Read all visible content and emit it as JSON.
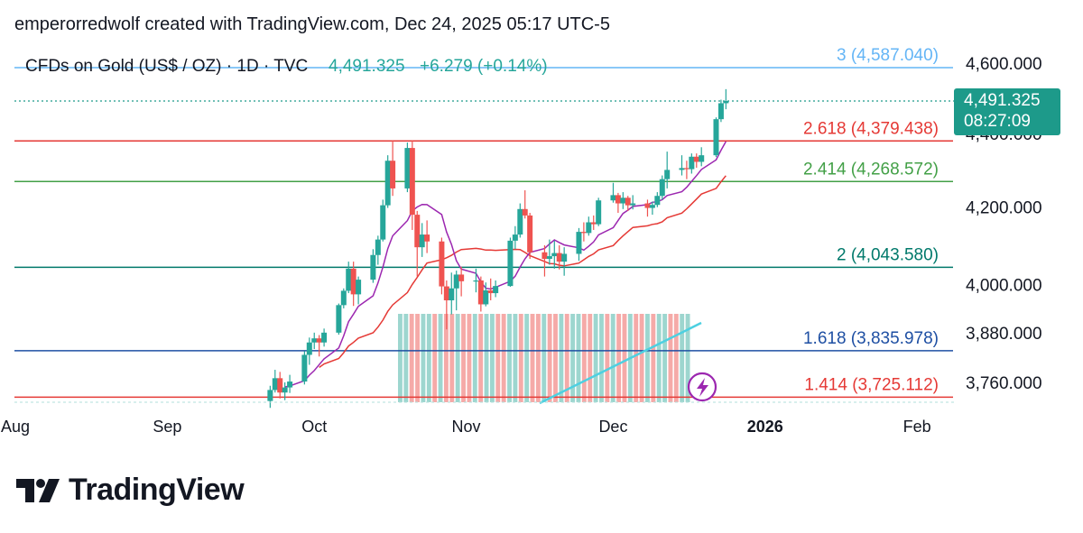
{
  "header": {
    "attribution": "emperorredwolf created with TradingView.com, Dec 24, 2025 05:17 UTC-5"
  },
  "symbol_line": {
    "name": "CFDs on Gold (US$ / OZ) · 1D · TVC",
    "price": "4,491.325",
    "change": "+6.279 (+0.14%)"
  },
  "price_badge": {
    "price": "4,491.325",
    "countdown": "08:27:09"
  },
  "logo": {
    "text": "TradingView"
  },
  "colors": {
    "up": "#26a69a",
    "down": "#ef5350",
    "ma_fast": "#9c27b0",
    "ma_slow": "#e53935",
    "badge": "#1d9a8a",
    "trendline": "#4dd0e1",
    "lightning_icon": "#9c27b0"
  },
  "chart_data": {
    "type": "candlestick",
    "title": "CFDs on Gold (US$ / OZ) · 1D · TVC",
    "x_range": [
      "2025-08-01",
      "2026-02-10"
    ],
    "x_ticks": [
      {
        "date": "2025-08-01",
        "label": "Aug",
        "bold": false
      },
      {
        "date": "2025-09-01",
        "label": "Sep",
        "bold": false
      },
      {
        "date": "2025-10-01",
        "label": "Oct",
        "bold": false
      },
      {
        "date": "2025-11-01",
        "label": "Nov",
        "bold": false
      },
      {
        "date": "2025-12-01",
        "label": "Dec",
        "bold": false
      },
      {
        "date": "2026-01-01",
        "label": "2026",
        "bold": true
      },
      {
        "date": "2026-02-01",
        "label": "Feb",
        "bold": false
      }
    ],
    "y_ticks": [
      {
        "value": 4600,
        "label": "4,600.000"
      },
      {
        "value": 4400,
        "label": "4,400.000"
      },
      {
        "value": 4200,
        "label": "4,200.000"
      },
      {
        "value": 4000,
        "label": "4,000.000"
      },
      {
        "value": 3880,
        "label": "3,880.000"
      },
      {
        "value": 3760,
        "label": "3,760.000"
      }
    ],
    "fib_levels": [
      {
        "level": "3",
        "value": 4587.04,
        "label": "3 (4,587.040)",
        "color": "#64b5f6"
      },
      {
        "level": "2.618",
        "value": 4379.438,
        "label": "2.618 (4,379.438)",
        "color": "#e53935"
      },
      {
        "level": "2.414",
        "value": 4268.572,
        "label": "2.414 (4,268.572)",
        "color": "#43a047"
      },
      {
        "level": "2",
        "value": 4043.58,
        "label": "2 (4,043.580)",
        "color": "#00796b"
      },
      {
        "level": "1.618",
        "value": 3835.978,
        "label": "1.618 (3,835.978)",
        "color": "#1e4fa3"
      },
      {
        "level": "1.414",
        "value": 3725.112,
        "label": "1.414 (3,725.112)",
        "color": "#e53935"
      }
    ],
    "last_price": 4491.325,
    "candles": [
      {
        "d": "2025-09-22",
        "o": 3716,
        "h": 3752,
        "l": 3700,
        "c": 3742
      },
      {
        "d": "2025-09-23",
        "o": 3742,
        "h": 3790,
        "l": 3736,
        "c": 3770
      },
      {
        "d": "2025-09-24",
        "o": 3770,
        "h": 3785,
        "l": 3722,
        "c": 3736
      },
      {
        "d": "2025-09-25",
        "o": 3736,
        "h": 3760,
        "l": 3718,
        "c": 3748
      },
      {
        "d": "2025-09-26",
        "o": 3748,
        "h": 3778,
        "l": 3735,
        "c": 3762
      },
      {
        "d": "2025-09-29",
        "o": 3762,
        "h": 3835,
        "l": 3755,
        "c": 3826
      },
      {
        "d": "2025-09-30",
        "o": 3826,
        "h": 3868,
        "l": 3802,
        "c": 3856
      },
      {
        "d": "2025-10-01",
        "o": 3856,
        "h": 3880,
        "l": 3840,
        "c": 3866
      },
      {
        "d": "2025-10-02",
        "o": 3866,
        "h": 3874,
        "l": 3822,
        "c": 3856
      },
      {
        "d": "2025-10-03",
        "o": 3856,
        "h": 3890,
        "l": 3846,
        "c": 3880
      },
      {
        "d": "2025-10-06",
        "o": 3880,
        "h": 3952,
        "l": 3875,
        "c": 3948
      },
      {
        "d": "2025-10-07",
        "o": 3948,
        "h": 3990,
        "l": 3940,
        "c": 3984
      },
      {
        "d": "2025-10-08",
        "o": 3984,
        "h": 4058,
        "l": 3978,
        "c": 4040
      },
      {
        "d": "2025-10-09",
        "o": 4040,
        "h": 4058,
        "l": 3946,
        "c": 3975
      },
      {
        "d": "2025-10-10",
        "o": 3975,
        "h": 4020,
        "l": 3950,
        "c": 4012
      },
      {
        "d": "2025-10-13",
        "o": 4012,
        "h": 4090,
        "l": 4004,
        "c": 4075
      },
      {
        "d": "2025-10-14",
        "o": 4075,
        "h": 4125,
        "l": 4050,
        "c": 4115
      },
      {
        "d": "2025-10-15",
        "o": 4115,
        "h": 4220,
        "l": 4110,
        "c": 4205
      },
      {
        "d": "2025-10-16",
        "o": 4205,
        "h": 4340,
        "l": 4198,
        "c": 4325
      },
      {
        "d": "2025-10-17",
        "o": 4325,
        "h": 4380,
        "l": 4230,
        "c": 4250
      },
      {
        "d": "2025-10-20",
        "o": 4250,
        "h": 4375,
        "l": 4240,
        "c": 4360
      },
      {
        "d": "2025-10-21",
        "o": 4360,
        "h": 4380,
        "l": 4140,
        "c": 4180
      },
      {
        "d": "2025-10-22",
        "o": 4180,
        "h": 4190,
        "l": 4020,
        "c": 4095
      },
      {
        "d": "2025-10-23",
        "o": 4095,
        "h": 4158,
        "l": 4070,
        "c": 4128
      },
      {
        "d": "2025-10-24",
        "o": 4128,
        "h": 4165,
        "l": 4080,
        "c": 4110
      },
      {
        "d": "2025-10-27",
        "o": 4110,
        "h": 4120,
        "l": 3975,
        "c": 3995
      },
      {
        "d": "2025-10-28",
        "o": 3995,
        "h": 4010,
        "l": 3888,
        "c": 3960
      },
      {
        "d": "2025-10-29",
        "o": 3960,
        "h": 4030,
        "l": 3925,
        "c": 3990
      },
      {
        "d": "2025-10-30",
        "o": 3990,
        "h": 4035,
        "l": 3935,
        "c": 4025
      },
      {
        "d": "2025-10-31",
        "o": 4025,
        "h": 4045,
        "l": 3970,
        "c": 4008
      },
      {
        "d": "2025-11-03",
        "o": 4008,
        "h": 4040,
        "l": 3980,
        "c": 4010
      },
      {
        "d": "2025-11-04",
        "o": 4010,
        "h": 4020,
        "l": 3932,
        "c": 3950
      },
      {
        "d": "2025-11-05",
        "o": 3950,
        "h": 4005,
        "l": 3945,
        "c": 3985
      },
      {
        "d": "2025-11-06",
        "o": 3985,
        "h": 4015,
        "l": 3960,
        "c": 3978
      },
      {
        "d": "2025-11-07",
        "o": 3978,
        "h": 4010,
        "l": 3968,
        "c": 3996
      },
      {
        "d": "2025-11-10",
        "o": 3996,
        "h": 4120,
        "l": 3994,
        "c": 4112
      },
      {
        "d": "2025-11-11",
        "o": 4112,
        "h": 4150,
        "l": 4090,
        "c": 4128
      },
      {
        "d": "2025-11-12",
        "o": 4128,
        "h": 4210,
        "l": 4120,
        "c": 4195
      },
      {
        "d": "2025-11-13",
        "o": 4195,
        "h": 4245,
        "l": 4170,
        "c": 4178
      },
      {
        "d": "2025-11-14",
        "o": 4178,
        "h": 4185,
        "l": 4065,
        "c": 4082
      },
      {
        "d": "2025-11-17",
        "o": 4082,
        "h": 4100,
        "l": 4020,
        "c": 4065
      },
      {
        "d": "2025-11-18",
        "o": 4065,
        "h": 4115,
        "l": 4050,
        "c": 4072
      },
      {
        "d": "2025-11-19",
        "o": 4072,
        "h": 4112,
        "l": 4040,
        "c": 4080
      },
      {
        "d": "2025-11-20",
        "o": 4080,
        "h": 4100,
        "l": 4038,
        "c": 4058
      },
      {
        "d": "2025-11-21",
        "o": 4058,
        "h": 4095,
        "l": 4022,
        "c": 4078
      },
      {
        "d": "2025-11-24",
        "o": 4078,
        "h": 4145,
        "l": 4060,
        "c": 4135
      },
      {
        "d": "2025-11-25",
        "o": 4135,
        "h": 4160,
        "l": 4110,
        "c": 4132
      },
      {
        "d": "2025-11-26",
        "o": 4132,
        "h": 4175,
        "l": 4125,
        "c": 4160
      },
      {
        "d": "2025-11-27",
        "o": 4160,
        "h": 4178,
        "l": 4140,
        "c": 4155
      },
      {
        "d": "2025-11-28",
        "o": 4155,
        "h": 4225,
        "l": 4150,
        "c": 4218
      },
      {
        "d": "2025-12-01",
        "o": 4218,
        "h": 4265,
        "l": 4212,
        "c": 4232
      },
      {
        "d": "2025-12-02",
        "o": 4232,
        "h": 4238,
        "l": 4185,
        "c": 4210
      },
      {
        "d": "2025-12-03",
        "o": 4210,
        "h": 4240,
        "l": 4195,
        "c": 4225
      },
      {
        "d": "2025-12-04",
        "o": 4225,
        "h": 4230,
        "l": 4190,
        "c": 4205
      },
      {
        "d": "2025-12-05",
        "o": 4205,
        "h": 4232,
        "l": 4194,
        "c": 4210
      },
      {
        "d": "2025-12-08",
        "o": 4210,
        "h": 4220,
        "l": 4175,
        "c": 4198
      },
      {
        "d": "2025-12-09",
        "o": 4198,
        "h": 4215,
        "l": 4180,
        "c": 4206
      },
      {
        "d": "2025-12-10",
        "o": 4206,
        "h": 4240,
        "l": 4200,
        "c": 4230
      },
      {
        "d": "2025-12-11",
        "o": 4230,
        "h": 4285,
        "l": 4220,
        "c": 4275
      },
      {
        "d": "2025-12-12",
        "o": 4275,
        "h": 4350,
        "l": 4250,
        "c": 4300
      },
      {
        "d": "2025-12-15",
        "o": 4300,
        "h": 4340,
        "l": 4285,
        "c": 4305
      },
      {
        "d": "2025-12-16",
        "o": 4305,
        "h": 4325,
        "l": 4275,
        "c": 4302
      },
      {
        "d": "2025-12-17",
        "o": 4302,
        "h": 4345,
        "l": 4290,
        "c": 4336
      },
      {
        "d": "2025-12-18",
        "o": 4336,
        "h": 4345,
        "l": 4306,
        "c": 4322
      },
      {
        "d": "2025-12-19",
        "o": 4322,
        "h": 4362,
        "l": 4310,
        "c": 4340
      },
      {
        "d": "2025-12-22",
        "o": 4340,
        "h": 4445,
        "l": 4335,
        "c": 4440
      },
      {
        "d": "2025-12-23",
        "o": 4440,
        "h": 4495,
        "l": 4432,
        "c": 4485
      },
      {
        "d": "2025-12-24",
        "o": 4485,
        "h": 4525,
        "l": 4468,
        "c": 4491.325
      }
    ]
  }
}
